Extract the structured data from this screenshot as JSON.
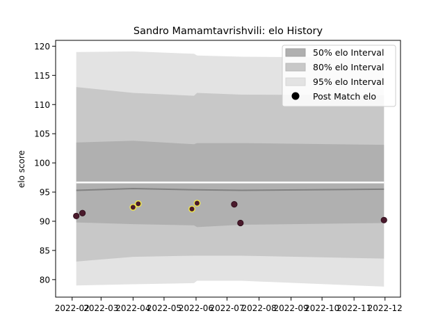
{
  "chart_data": {
    "type": "line",
    "title": "Sandro Mamamtavrishvili: elo History",
    "xlabel": "",
    "ylabel": "elo score",
    "xlim": [
      "2022-01-16",
      "2022-12-16"
    ],
    "ylim": [
      77,
      121
    ],
    "x_ticks": [
      "2022-02",
      "2022-03",
      "2022-04",
      "2022-05",
      "2022-06",
      "2022-07",
      "2022-08",
      "2022-09",
      "2022-10",
      "2022-11",
      "2022-12"
    ],
    "y_ticks": [
      80,
      85,
      90,
      95,
      100,
      105,
      110,
      115,
      120
    ],
    "grid": false,
    "legend_position": "top-right",
    "legend": [
      {
        "label": "50% elo Interval",
        "color": "#b0b0b0"
      },
      {
        "label": "80% elo Interval",
        "color": "#c8c8c8"
      },
      {
        "label": "95% elo Interval",
        "color": "#e3e3e3"
      },
      {
        "label": "Post Match elo",
        "color": "#000000"
      }
    ],
    "band_dates": [
      "2022-02-05",
      "2022-04-01",
      "2022-05-30",
      "2022-06-02",
      "2022-07-15",
      "2022-11-30"
    ],
    "bands": {
      "p95_upper": [
        119.0,
        119.1,
        118.7,
        118.4,
        118.2,
        118.0
      ],
      "p80_upper": [
        113.0,
        112.0,
        111.5,
        112.0,
        111.7,
        111.6
      ],
      "p50_upper": [
        103.5,
        103.8,
        103.2,
        103.4,
        103.4,
        103.1
      ],
      "p50_lower": [
        89.8,
        89.5,
        89.3,
        89.0,
        89.4,
        89.7
      ],
      "p80_lower": [
        83.1,
        83.9,
        84.1,
        84.1,
        84.1,
        83.6
      ],
      "p95_lower": [
        79.0,
        79.2,
        79.4,
        79.8,
        79.8,
        78.8
      ]
    },
    "gap_band": {
      "upper": 96.8,
      "lower": 96.5
    },
    "mean_line": [
      95.3,
      95.6,
      95.4,
      95.4,
      95.3,
      95.5
    ],
    "series": [
      {
        "name": "Post Match elo",
        "points": [
          {
            "date": "2022-02-05",
            "elo": 90.9,
            "highlight": false
          },
          {
            "date": "2022-02-11",
            "elo": 91.4,
            "highlight": false
          },
          {
            "date": "2022-04-01",
            "elo": 92.4,
            "highlight": true
          },
          {
            "date": "2022-04-06",
            "elo": 93.0,
            "highlight": true
          },
          {
            "date": "2022-05-28",
            "elo": 92.1,
            "highlight": true
          },
          {
            "date": "2022-06-02",
            "elo": 93.1,
            "highlight": true
          },
          {
            "date": "2022-07-08",
            "elo": 92.9,
            "highlight": false
          },
          {
            "date": "2022-07-14",
            "elo": 89.7,
            "highlight": false
          },
          {
            "date": "2022-11-30",
            "elo": 90.2,
            "highlight": false
          }
        ]
      }
    ],
    "colors": {
      "band50": "#b0b0b0",
      "band80": "#c8c8c8",
      "band95": "#e3e3e3",
      "mean_line": "#808080",
      "point_fill": "#4a1a2c",
      "point_edge": "#2a0a18",
      "highlight_edge": "#f0e84a"
    }
  }
}
